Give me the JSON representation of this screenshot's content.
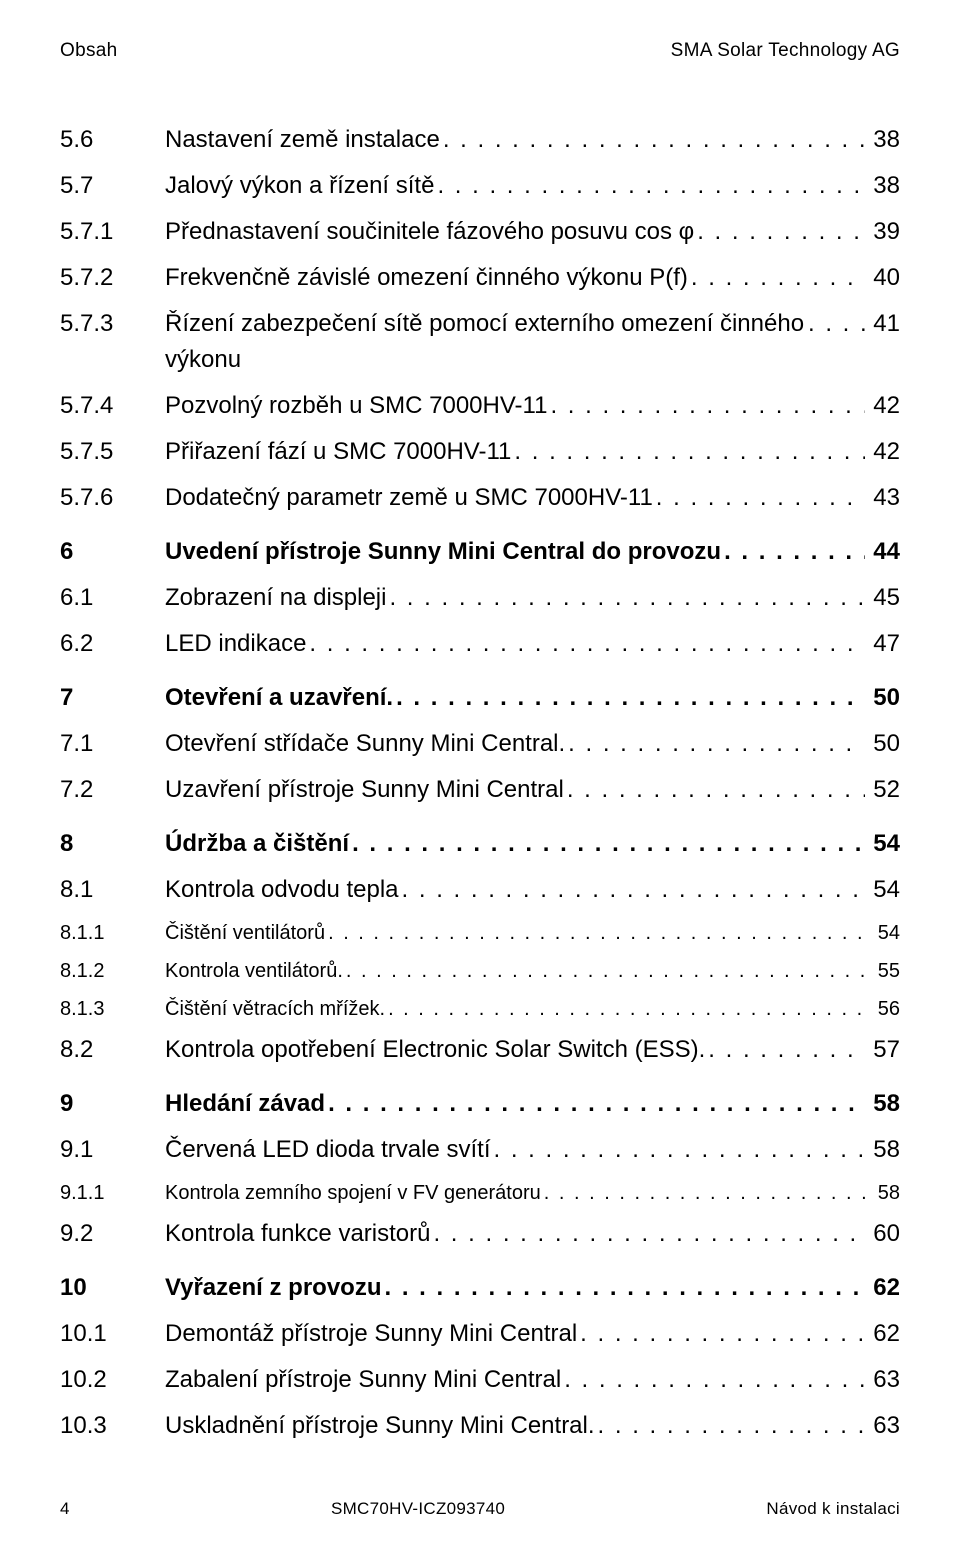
{
  "header": {
    "left": "Obsah",
    "right": "SMA Solar Technology AG"
  },
  "footer": {
    "pageNum": "4",
    "docCode": "SMC70HV-ICZ093740",
    "docTitle": "Návod k instalaci"
  },
  "dots": ". . . . . . . . . . . . . . . . . . . . . . . . . . . . . . . . . . . . . . . . . . . . . . . . . . . . . . . . . . . . . . . . . . . . . . . . . . . . . . . . . . . . . . . . . .",
  "toc": [
    {
      "num": "5.6",
      "title": "Nastavení země instalace",
      "page": "38",
      "level": 2
    },
    {
      "num": "5.7",
      "title": "Jalový výkon a řízení sítě",
      "page": "38",
      "level": 2
    },
    {
      "num": "5.7.1",
      "title": "Přednastavení součinitele fázového posuvu cos φ",
      "page": "39",
      "level": 2
    },
    {
      "num": "5.7.2",
      "title": "Frekvenčně závislé omezení činného výkonu P(f)",
      "page": "40",
      "level": 2
    },
    {
      "num": "5.7.3",
      "title": "Řízení zabezpečení sítě pomocí externího omezení činného výkonu",
      "page": "41",
      "level": 2
    },
    {
      "num": "5.7.4",
      "title": "Pozvolný rozběh u SMC 7000HV-11",
      "page": "42",
      "level": 2
    },
    {
      "num": "5.7.5",
      "title": "Přiřazení fází u SMC 7000HV-11",
      "page": "42",
      "level": 2
    },
    {
      "num": "5.7.6",
      "title": "Dodatečný parametr země u SMC 7000HV-11",
      "page": "43",
      "level": 2
    },
    {
      "num": "6",
      "title": "Uvedení přístroje Sunny Mini Central do provozu",
      "page": "44",
      "level": 1
    },
    {
      "num": "6.1",
      "title": "Zobrazení na displeji",
      "page": "45",
      "level": 2
    },
    {
      "num": "6.2",
      "title": "LED indikace",
      "page": "47",
      "level": 2
    },
    {
      "num": "7",
      "title": "Otevření a uzavření.",
      "page": "50",
      "level": 1
    },
    {
      "num": "7.1",
      "title": "Otevření střídače Sunny Mini Central.",
      "page": "50",
      "level": 2
    },
    {
      "num": "7.2",
      "title": "Uzavření přístroje Sunny Mini Central",
      "page": "52",
      "level": 2
    },
    {
      "num": "8",
      "title": "Údržba a čištění",
      "page": "54",
      "level": 1
    },
    {
      "num": "8.1",
      "title": "Kontrola odvodu tepla",
      "page": "54",
      "level": 2
    },
    {
      "num": "8.1.1",
      "title": "Čištění ventilátorů",
      "page": "54",
      "level": 3
    },
    {
      "num": "8.1.2",
      "title": "Kontrola ventilátorů.",
      "page": "55",
      "level": 3
    },
    {
      "num": "8.1.3",
      "title": "Čištění větracích mřížek.",
      "page": "56",
      "level": 3
    },
    {
      "num": "8.2",
      "title": "Kontrola opotřebení Electronic Solar Switch (ESS).",
      "page": "57",
      "level": 2
    },
    {
      "num": "9",
      "title": "Hledání závad",
      "page": "58",
      "level": 1
    },
    {
      "num": "9.1",
      "title": "Červená LED dioda trvale svítí",
      "page": "58",
      "level": 2
    },
    {
      "num": "9.1.1",
      "title": "Kontrola zemního spojení v FV generátoru",
      "page": "58",
      "level": 3
    },
    {
      "num": "9.2",
      "title": "Kontrola funkce varistorů",
      "page": "60",
      "level": 2
    },
    {
      "num": "10",
      "title": "Vyřazení z provozu",
      "page": "62",
      "level": 1
    },
    {
      "num": "10.1",
      "title": "Demontáž přístroje Sunny Mini Central",
      "page": "62",
      "level": 2
    },
    {
      "num": "10.2",
      "title": "Zabalení přístroje Sunny Mini Central",
      "page": "63",
      "level": 2
    },
    {
      "num": "10.3",
      "title": "Uskladnění přístroje Sunny Mini Central.",
      "page": "63",
      "level": 2
    }
  ]
}
